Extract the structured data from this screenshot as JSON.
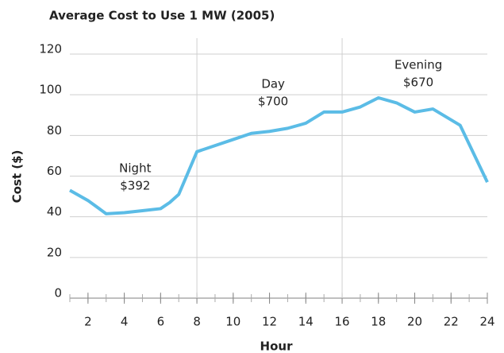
{
  "chart_data": {
    "type": "line",
    "title": "Average Cost to Use 1 MW (2005)",
    "xlabel": "Hour",
    "ylabel": "Cost ($)",
    "x": [
      1,
      2,
      3,
      4,
      5,
      6,
      6.5,
      7,
      8,
      9,
      10,
      11,
      12,
      13,
      14,
      15,
      16,
      17,
      18,
      19,
      20,
      21,
      22.5,
      24
    ],
    "series": [
      {
        "name": "Average cost",
        "color": "#5bbce6",
        "values": [
          53,
          48,
          41.5,
          42,
          43,
          44,
          47,
          51,
          72,
          75,
          78,
          81,
          82,
          83.5,
          86,
          91.5,
          91.5,
          94,
          98.5,
          96,
          91.5,
          93,
          85,
          57
        ]
      }
    ],
    "xlim": [
      1,
      24
    ],
    "xticks": [
      2,
      4,
      6,
      8,
      10,
      12,
      14,
      16,
      18,
      20,
      22,
      24
    ],
    "ylim": [
      0,
      120
    ],
    "yticks": [
      0,
      20,
      40,
      60,
      80,
      100,
      120
    ],
    "vlines": [
      8,
      16
    ],
    "grid": true,
    "annotations": [
      [
        "Night",
        "$392"
      ],
      [
        "Day",
        "$700"
      ],
      [
        "Evening",
        "$670"
      ]
    ]
  }
}
